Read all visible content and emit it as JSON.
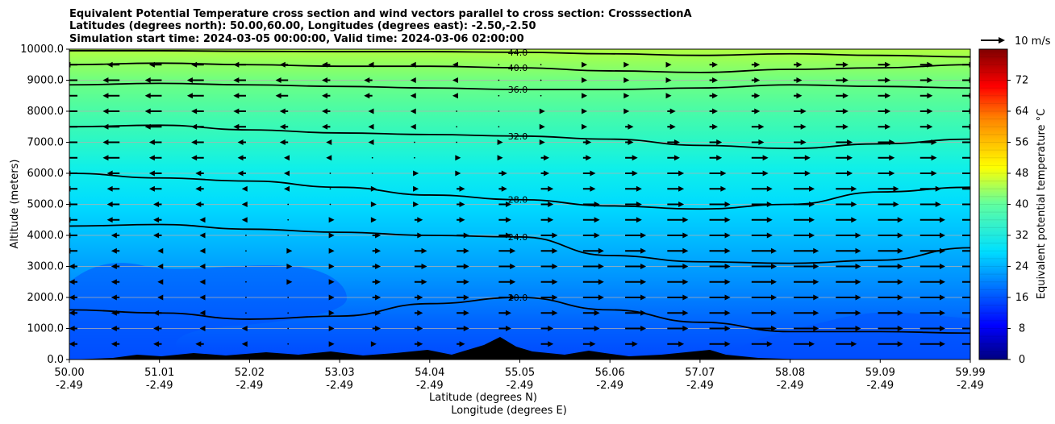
{
  "figure": {
    "title_lines": [
      "Equivalent Potential Temperature cross section and wind vectors parallel to cross section: CrosssectionA",
      "Latitudes (degrees north): 50.00,60.00, Longitudes (degrees east): -2.50,-2.50",
      "Simulation start time: 2024-03-05 00:00:00, Valid time: 2024-03-06 02:00:00"
    ]
  },
  "chart_data": {
    "type": "heatmap",
    "xlabel_lat": "Latitude (degrees N)",
    "xlabel_lon": "Longitude (degrees E)",
    "ylabel": "Altitude (meters)",
    "ylim": [
      0,
      10000
    ],
    "y_ticks": [
      "0.0",
      "1000.0",
      "2000.0",
      "3000.0",
      "4000.0",
      "5000.0",
      "6000.0",
      "7000.0",
      "8000.0",
      "9000.0",
      "10000.0"
    ],
    "x_ticks": [
      {
        "lat": "50.00",
        "lon": "-2.49"
      },
      {
        "lat": "51.01",
        "lon": "-2.49"
      },
      {
        "lat": "52.02",
        "lon": "-2.49"
      },
      {
        "lat": "53.03",
        "lon": "-2.49"
      },
      {
        "lat": "54.04",
        "lon": "-2.49"
      },
      {
        "lat": "55.05",
        "lon": "-2.49"
      },
      {
        "lat": "56.06",
        "lon": "-2.49"
      },
      {
        "lat": "57.07",
        "lon": "-2.49"
      },
      {
        "lat": "58.08",
        "lon": "-2.49"
      },
      {
        "lat": "59.09",
        "lon": "-2.49"
      },
      {
        "lat": "59.99",
        "lon": "-2.49"
      }
    ],
    "grid": "horizontal",
    "colorbar": {
      "label": "Equivalent potential temperature $^\\circ$C",
      "range": [
        0,
        80
      ],
      "ticks": [
        "0",
        "8",
        "16",
        "24",
        "32",
        "40",
        "48",
        "56",
        "64",
        "72"
      ]
    },
    "quiver_key": "10 m/s",
    "contours": [
      {
        "level": "20.0",
        "altitude_m": [
          1600,
          1500,
          1300,
          1400,
          1800,
          2000,
          1600,
          1200,
          900,
          900,
          850
        ]
      },
      {
        "level": "24.0",
        "altitude_m": [
          4300,
          4350,
          4200,
          4100,
          4000,
          3950,
          3350,
          3150,
          3100,
          3200,
          3600
        ]
      },
      {
        "level": "28.0",
        "altitude_m": [
          6000,
          5850,
          5750,
          5550,
          5300,
          5150,
          4950,
          4850,
          5000,
          5400,
          5550
        ]
      },
      {
        "level": "32.0",
        "altitude_m": [
          7500,
          7550,
          7400,
          7300,
          7250,
          7200,
          7100,
          6900,
          6800,
          6950,
          7100
        ]
      },
      {
        "level": "36.0",
        "altitude_m": [
          8850,
          8900,
          8850,
          8800,
          8750,
          8700,
          8700,
          8750,
          8850,
          8800,
          8750
        ]
      },
      {
        "level": "40.0",
        "altitude_m": [
          9500,
          9550,
          9500,
          9450,
          9450,
          9400,
          9300,
          9250,
          9350,
          9400,
          9500
        ]
      },
      {
        "level": "44.0",
        "altitude_m": [
          9950,
          9950,
          9930,
          9920,
          9920,
          9900,
          9850,
          9800,
          9850,
          9800,
          9750
        ]
      }
    ],
    "wind": {
      "rows_altitude_m": [
        500,
        1000,
        1500,
        2000,
        2500,
        3000,
        3500,
        4000,
        4500,
        5000,
        5500,
        6000,
        6500,
        7000,
        7500,
        8000,
        8500,
        9000,
        9500
      ],
      "columns": 22,
      "profile_ms": [
        [
          -2,
          -2,
          -2,
          -2,
          -1,
          0,
          1,
          1,
          2,
          2,
          2,
          3,
          3,
          3,
          4,
          5,
          5,
          5,
          5,
          6,
          6,
          6
        ],
        [
          -2,
          -2,
          -2,
          -1,
          -1,
          0,
          1,
          2,
          2,
          3,
          3,
          3,
          4,
          5,
          5,
          5,
          6,
          6,
          6,
          6,
          6,
          6
        ],
        [
          -2,
          -2,
          -2,
          -1,
          0,
          0,
          1,
          2,
          2,
          3,
          3,
          4,
          4,
          5,
          5,
          5,
          6,
          6,
          6,
          6,
          6,
          6
        ],
        [
          -2,
          -2,
          -1,
          -1,
          0,
          0,
          1,
          2,
          2,
          3,
          4,
          4,
          5,
          5,
          5,
          5,
          6,
          6,
          6,
          6,
          6,
          6
        ],
        [
          -2,
          -2,
          -1,
          -1,
          0,
          1,
          1,
          2,
          3,
          3,
          4,
          4,
          5,
          5,
          5,
          5,
          6,
          6,
          6,
          6,
          6,
          6
        ],
        [
          -2,
          -2,
          -1,
          -1,
          0,
          1,
          1,
          2,
          3,
          3,
          4,
          4,
          5,
          5,
          5,
          5,
          6,
          6,
          6,
          6,
          6,
          6
        ],
        [
          -3,
          -2,
          -1,
          -1,
          0,
          1,
          1,
          2,
          3,
          3,
          4,
          4,
          5,
          5,
          5,
          5,
          6,
          6,
          6,
          6,
          6,
          6
        ],
        [
          -3,
          -2,
          -2,
          -1,
          0,
          0,
          1,
          2,
          2,
          3,
          3,
          4,
          4,
          5,
          5,
          5,
          5,
          5,
          6,
          6,
          6,
          6
        ],
        [
          -3,
          -3,
          -2,
          -1,
          -1,
          0,
          1,
          1,
          2,
          2,
          3,
          3,
          4,
          4,
          5,
          5,
          5,
          5,
          5,
          6,
          6,
          6
        ],
        [
          -3,
          -3,
          -2,
          -2,
          -1,
          0,
          0,
          1,
          1,
          2,
          3,
          3,
          4,
          4,
          4,
          5,
          5,
          5,
          5,
          5,
          5,
          5
        ],
        [
          -3,
          -3,
          -3,
          -2,
          -1,
          -1,
          0,
          1,
          1,
          2,
          2,
          3,
          3,
          4,
          4,
          4,
          5,
          5,
          5,
          5,
          5,
          5
        ],
        [
          -3,
          -3,
          -3,
          -2,
          -2,
          -1,
          0,
          0,
          1,
          1,
          2,
          2,
          3,
          3,
          4,
          4,
          4,
          4,
          4,
          4,
          4,
          4
        ],
        [
          -4,
          -4,
          -3,
          -3,
          -2,
          -1,
          -1,
          0,
          0,
          1,
          1,
          2,
          2,
          3,
          3,
          3,
          4,
          4,
          4,
          4,
          4,
          4
        ],
        [
          -4,
          -4,
          -3,
          -3,
          -2,
          -2,
          -1,
          -1,
          0,
          0,
          1,
          1,
          2,
          2,
          3,
          3,
          3,
          3,
          4,
          4,
          4,
          4
        ],
        [
          -4,
          -4,
          -4,
          -3,
          -3,
          -2,
          -2,
          -1,
          -1,
          0,
          0,
          1,
          1,
          2,
          2,
          2,
          3,
          3,
          3,
          3,
          3,
          3
        ],
        [
          -4,
          -4,
          -4,
          -3,
          -3,
          -2,
          -2,
          -1,
          -1,
          0,
          0,
          1,
          1,
          1,
          2,
          2,
          2,
          3,
          3,
          3,
          3,
          3
        ],
        [
          -4,
          -4,
          -4,
          -4,
          -3,
          -3,
          -2,
          -2,
          -1,
          -1,
          0,
          0,
          1,
          1,
          1,
          2,
          2,
          2,
          3,
          3,
          3,
          3
        ],
        [
          -4,
          -4,
          -4,
          -4,
          -3,
          -3,
          -2,
          -2,
          -1,
          -1,
          0,
          0,
          1,
          1,
          1,
          2,
          2,
          2,
          3,
          3,
          3,
          3
        ],
        [
          -3,
          -3,
          -3,
          -3,
          -3,
          -2,
          -2,
          -1,
          -1,
          -1,
          0,
          0,
          1,
          1,
          1,
          2,
          2,
          2,
          3,
          3,
          3,
          3
        ]
      ]
    }
  }
}
